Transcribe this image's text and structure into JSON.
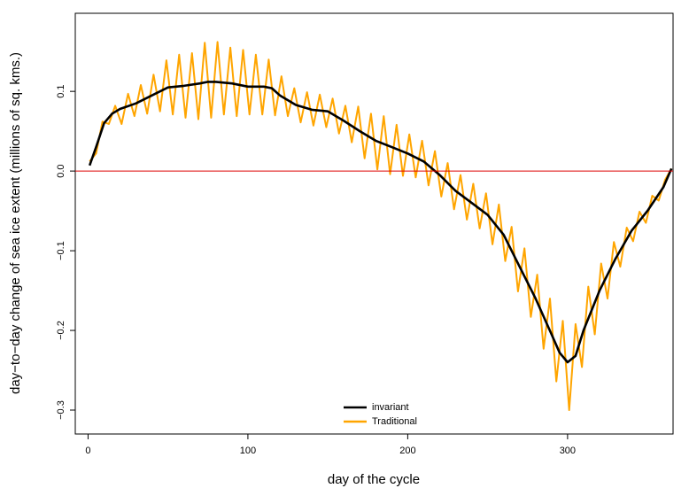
{
  "chart_data": {
    "type": "line",
    "xlabel": "day of the cycle",
    "ylabel": "day−to−day change of sea ice extent (millions of sq. kms.)",
    "xlim": [
      -8,
      366
    ],
    "ylim": [
      -0.33,
      0.198
    ],
    "xticks": [
      0,
      100,
      200,
      300
    ],
    "yticks": [
      {
        "value": -0.3,
        "label": "−0.3"
      },
      {
        "value": -0.2,
        "label": "−0.2"
      },
      {
        "value": -0.1,
        "label": "−0.1"
      },
      {
        "value": 0,
        "label": "0.0"
      },
      0.1
    ],
    "hline": 0,
    "hline_color": "#dd0000",
    "legend": "bottom",
    "series": [
      {
        "name": "Traditional",
        "color": "#ffa500",
        "x": [
          1,
          5,
          9,
          13,
          17,
          21,
          25,
          29,
          33,
          37,
          41,
          45,
          49,
          53,
          57,
          61,
          65,
          69,
          73,
          77,
          81,
          85,
          89,
          93,
          97,
          101,
          105,
          109,
          113,
          117,
          121,
          125,
          129,
          133,
          137,
          141,
          145,
          149,
          153,
          157,
          161,
          165,
          169,
          173,
          177,
          181,
          185,
          189,
          193,
          197,
          201,
          205,
          209,
          213,
          217,
          221,
          225,
          229,
          233,
          237,
          241,
          245,
          249,
          253,
          257,
          261,
          265,
          269,
          273,
          277,
          281,
          285,
          289,
          293,
          297,
          301,
          305,
          309,
          313,
          317,
          321,
          325,
          329,
          333,
          337,
          341,
          345,
          349,
          353,
          357,
          361,
          365
        ],
        "values": [
          0.012,
          0.022,
          0.062,
          0.059,
          0.082,
          0.059,
          0.097,
          0.069,
          0.108,
          0.072,
          0.121,
          0.075,
          0.139,
          0.071,
          0.146,
          0.067,
          0.148,
          0.065,
          0.161,
          0.067,
          0.162,
          0.071,
          0.155,
          0.069,
          0.152,
          0.071,
          0.146,
          0.071,
          0.14,
          0.07,
          0.119,
          0.069,
          0.104,
          0.061,
          0.099,
          0.057,
          0.096,
          0.055,
          0.091,
          0.047,
          0.082,
          0.036,
          0.081,
          0.016,
          0.072,
          0.002,
          0.069,
          -0.004,
          0.058,
          -0.006,
          0.046,
          -0.008,
          0.038,
          -0.018,
          0.025,
          -0.032,
          0.01,
          -0.048,
          -0.005,
          -0.061,
          -0.016,
          -0.072,
          -0.028,
          -0.092,
          -0.042,
          -0.113,
          -0.07,
          -0.151,
          -0.097,
          -0.183,
          -0.13,
          -0.223,
          -0.16,
          -0.264,
          -0.188,
          -0.3,
          -0.192,
          -0.246,
          -0.145,
          -0.205,
          -0.116,
          -0.16,
          -0.089,
          -0.12,
          -0.071,
          -0.088,
          -0.051,
          -0.065,
          -0.031,
          -0.037,
          -0.011,
          0.003
        ]
      },
      {
        "name": "invariant",
        "color": "#000000",
        "x": [
          1,
          5,
          10,
          15,
          20,
          30,
          40,
          50,
          60,
          70,
          75,
          80,
          90,
          100,
          110,
          115,
          120,
          130,
          140,
          150,
          160,
          170,
          180,
          190,
          200,
          210,
          220,
          230,
          240,
          250,
          260,
          270,
          280,
          290,
          295,
          300,
          305,
          310,
          320,
          330,
          340,
          350,
          360,
          365
        ],
        "values": [
          0.007,
          0.03,
          0.06,
          0.072,
          0.078,
          0.085,
          0.095,
          0.105,
          0.107,
          0.11,
          0.112,
          0.112,
          0.11,
          0.106,
          0.106,
          0.104,
          0.095,
          0.083,
          0.077,
          0.075,
          0.063,
          0.05,
          0.038,
          0.03,
          0.022,
          0.012,
          -0.005,
          -0.025,
          -0.04,
          -0.055,
          -0.08,
          -0.12,
          -0.16,
          -0.205,
          -0.228,
          -0.24,
          -0.232,
          -0.2,
          -0.15,
          -0.11,
          -0.075,
          -0.05,
          -0.02,
          0.003
        ]
      }
    ]
  }
}
